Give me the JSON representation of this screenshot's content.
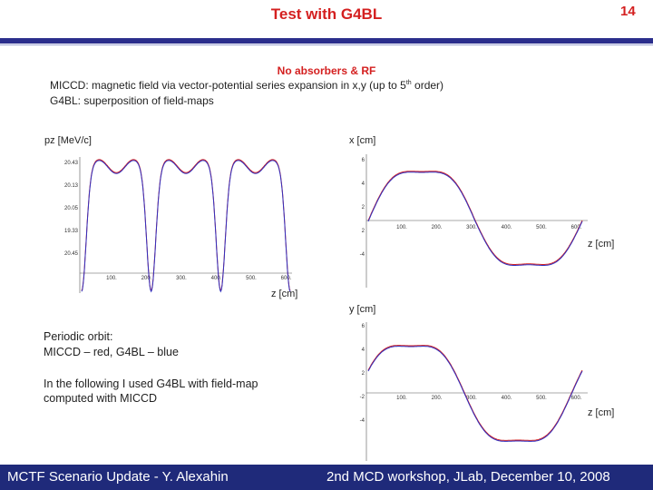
{
  "header": {
    "title": "Test with G4BL",
    "slide_number": "14"
  },
  "subtitle": "No absorbers & RF",
  "lines": {
    "l1_pre": "MICCD: magnetic field via vector-potential series expansion in x,y (up to 5",
    "l1_sup": "th",
    "l1_post": " order)",
    "l2": "G4BL: superposition of field-maps"
  },
  "plots": {
    "pz": {
      "ylabel": "pz [MeV/c]",
      "xlabel": "z [cm]",
      "yticks": [
        "20.43",
        "20.13",
        "20.05",
        "19.33",
        "20.45"
      ],
      "xticks": [
        "100.",
        "200.",
        "300.",
        "400.",
        "500.",
        "600."
      ]
    },
    "x": {
      "ylabel": "x [cm]",
      "xlabel": "z [cm]",
      "yticks": [
        "6",
        "4",
        "2",
        "2",
        "-4"
      ],
      "xticks": [
        "100.",
        "200.",
        "300.",
        "400.",
        "500.",
        "600."
      ]
    },
    "y": {
      "ylabel": "y [cm]",
      "xlabel": "z [cm]",
      "yticks": [
        "6",
        "4",
        "2",
        "-2",
        "-4"
      ],
      "xticks": [
        "100.",
        "200.",
        "300.",
        "400.",
        "500.",
        "600."
      ]
    }
  },
  "notes": {
    "orbit_l1": "Periodic orbit:",
    "orbit_l2": "MICCD – red, G4BL – blue",
    "following_l1": "In the following I used G4BL with field-map",
    "following_l2": "computed with MICCD"
  },
  "colors": {
    "miccd": "#d42020",
    "g4bl": "#3030c0",
    "accent": "#2b2e8c"
  },
  "footer": {
    "left": "MCTF Scenario Update - Y. Alexahin",
    "right": "2nd MCD workshop, JLab, December 10, 2008"
  }
}
